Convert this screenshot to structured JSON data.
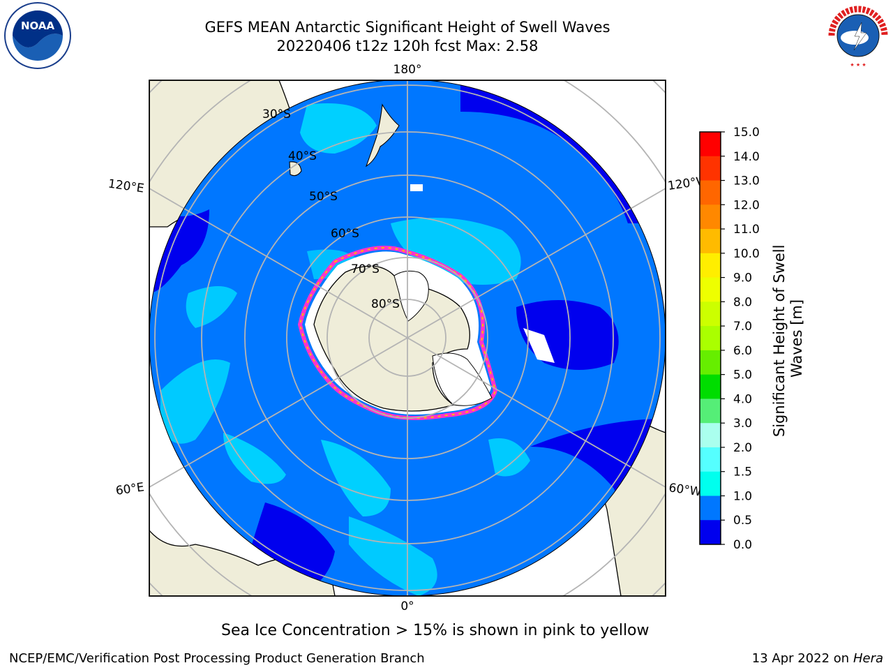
{
  "title_line1": "GEFS MEAN Antarctic Significant Height of Swell Waves",
  "title_line2": "20220406 t12z 120h fcst   Max: 2.58",
  "map": {
    "meridian_labels": {
      "top": "180°",
      "bottom": "0°",
      "upper_left": "120°E",
      "lower_left": "60°E",
      "upper_right": "120°W",
      "lower_right": "60°W"
    },
    "parallel_labels": [
      "30°S",
      "40°S",
      "50°S",
      "60°S",
      "70°S",
      "80°S"
    ],
    "colors": {
      "ocean_low": "#0000ee",
      "ocean_mid": "#0077ff",
      "ocean_high": "#00eeff",
      "land": "#efedd9",
      "ice_edge": "#ff33cc"
    }
  },
  "colorbar": {
    "title": "Significant Height of Swell Waves [m]",
    "title_line1": "Significant Height of Swell",
    "title_line2": "Waves [m]",
    "ticks": [
      "15.0",
      "14.0",
      "13.0",
      "12.0",
      "11.0",
      "10.0",
      "9.0",
      "8.0",
      "7.0",
      "6.0",
      "5.0",
      "4.0",
      "3.0",
      "2.0",
      "1.5",
      "1.0",
      "0.5",
      "0.0"
    ],
    "colors": [
      "#ff0000",
      "#ff3300",
      "#ff6600",
      "#ff8800",
      "#ffbb00",
      "#ffee00",
      "#eeff00",
      "#ccff00",
      "#aaff00",
      "#66ee00",
      "#00dd00",
      "#55ee77",
      "#aaffee",
      "#55ffff",
      "#00ffee",
      "#0077ff",
      "#0000ee"
    ]
  },
  "note": "Sea Ice Concentration > 15% is shown in pink to yellow",
  "footer_left": "NCEP/EMC/Verification Post Processing Product Generation Branch",
  "footer_right_date": "13 Apr 2022 on ",
  "footer_right_machine": "Hera",
  "logos": {
    "left_text": "NOAA",
    "right_text": "NATIONAL WEATHER SERVICE"
  }
}
